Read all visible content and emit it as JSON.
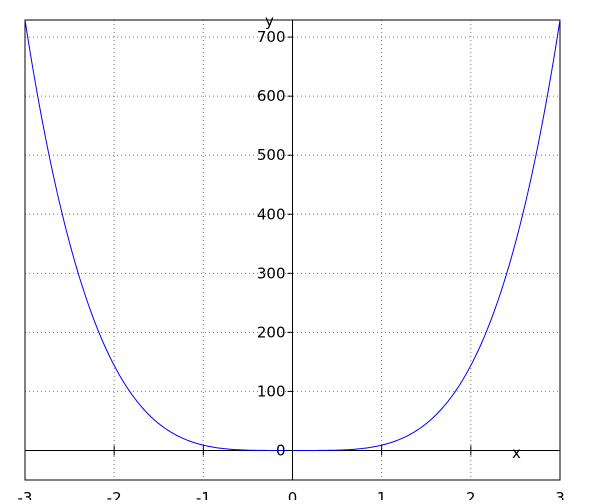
{
  "chart_data": {
    "type": "line",
    "title": "",
    "xlabel": "x",
    "ylabel": "y",
    "xlim": [
      -3,
      3
    ],
    "ylim": [
      -50,
      729
    ],
    "xticks": [
      -3,
      -2,
      -1,
      0,
      1,
      2,
      3
    ],
    "yticks": [
      0,
      100,
      200,
      300,
      400,
      500,
      600,
      700
    ],
    "xtick_labels": [
      "-3",
      "-2",
      "-1",
      "0",
      "1",
      "2",
      "3"
    ],
    "ytick_labels": [
      "0",
      "100",
      "200",
      "300",
      "400",
      "500",
      "600",
      "700"
    ],
    "grid": true,
    "series": [
      {
        "color": "#0000ff",
        "x": [
          -3,
          -2.5,
          -2,
          -1.5,
          -1,
          -0.5,
          0,
          0.5,
          1,
          1.5,
          2,
          2.5,
          3
        ],
        "y": [
          729,
          351.6,
          144,
          45.6,
          9,
          0.56,
          0,
          0.56,
          9,
          45.6,
          144,
          351.6,
          729
        ]
      }
    ]
  }
}
